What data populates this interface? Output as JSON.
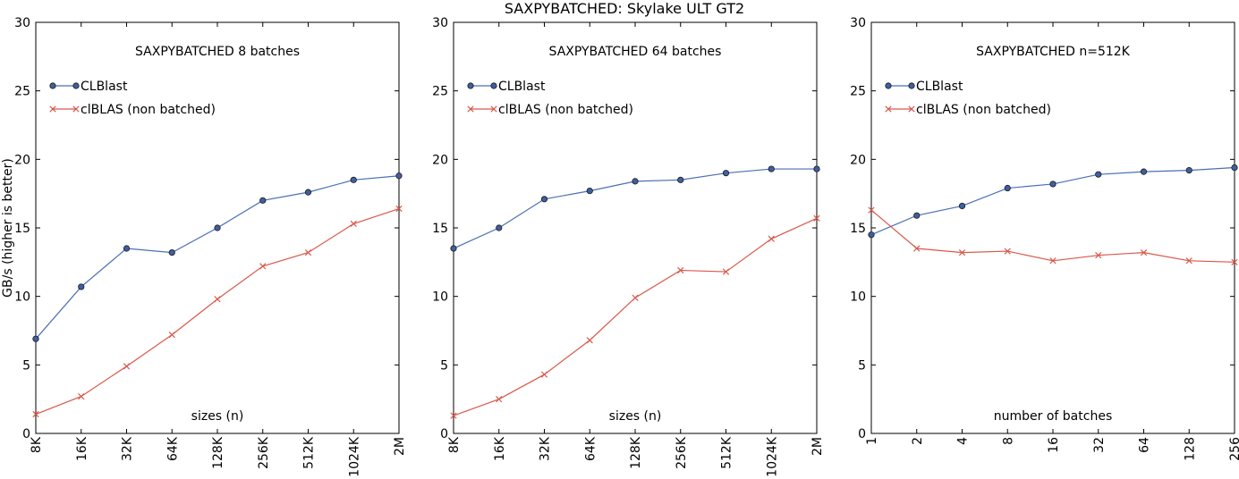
{
  "figure_title": "SAXPYBATCHED: Skylake ULT GT2",
  "ylabel": "GB/s (higher is better)",
  "colors": {
    "clblast": "#4a6fb3",
    "clblas": "#d9584a",
    "marker_fill": "#3f5f9f"
  },
  "chart_data": [
    {
      "type": "line",
      "title": "SAXPYBATCHED 8 batches",
      "xlabel": "sizes (n)",
      "categories": [
        "8K",
        "16K",
        "32K",
        "64K",
        "128K",
        "256K",
        "512K",
        "1024K",
        "2M"
      ],
      "ylim": [
        0,
        30
      ],
      "yticks": [
        "0",
        "5",
        "10",
        "15",
        "20",
        "25",
        "30"
      ],
      "legend": "upper-left",
      "series": [
        {
          "name": "CLBlast",
          "marker": "circle",
          "values": [
            6.9,
            10.7,
            13.5,
            13.2,
            15.0,
            17.0,
            17.6,
            18.5,
            18.8
          ]
        },
        {
          "name": "clBLAS (non batched)",
          "marker": "x",
          "values": [
            1.4,
            2.7,
            4.9,
            7.2,
            9.8,
            12.2,
            13.2,
            15.3,
            16.4
          ]
        }
      ]
    },
    {
      "type": "line",
      "title": "SAXPYBATCHED 64 batches",
      "xlabel": "sizes (n)",
      "categories": [
        "8K",
        "16K",
        "32K",
        "64K",
        "128K",
        "256K",
        "512K",
        "1024K",
        "2M"
      ],
      "ylim": [
        0,
        30
      ],
      "yticks": [
        "0",
        "5",
        "10",
        "15",
        "20",
        "25",
        "30"
      ],
      "legend": "upper-left",
      "series": [
        {
          "name": "CLBlast",
          "marker": "circle",
          "values": [
            13.5,
            15.0,
            17.1,
            17.7,
            18.4,
            18.5,
            19.0,
            19.3,
            19.3
          ]
        },
        {
          "name": "clBLAS (non batched)",
          "marker": "x",
          "values": [
            1.3,
            2.5,
            4.3,
            6.8,
            9.9,
            11.9,
            11.8,
            14.2,
            15.7
          ]
        }
      ]
    },
    {
      "type": "line",
      "title": "SAXPYBATCHED n=512K",
      "xlabel": "number of batches",
      "categories": [
        "1",
        "2",
        "4",
        "8",
        "16",
        "32",
        "64",
        "128",
        "256"
      ],
      "ylim": [
        0,
        30
      ],
      "yticks": [
        "0",
        "5",
        "10",
        "15",
        "20",
        "25",
        "30"
      ],
      "legend": "upper-left",
      "series": [
        {
          "name": "CLBlast",
          "marker": "circle",
          "values": [
            14.5,
            15.9,
            16.6,
            17.9,
            18.2,
            18.9,
            19.1,
            19.2,
            19.4
          ]
        },
        {
          "name": "clBLAS (non batched)",
          "marker": "x",
          "values": [
            16.3,
            13.5,
            13.2,
            13.3,
            12.6,
            13.0,
            13.2,
            12.6,
            12.5
          ]
        }
      ]
    }
  ]
}
